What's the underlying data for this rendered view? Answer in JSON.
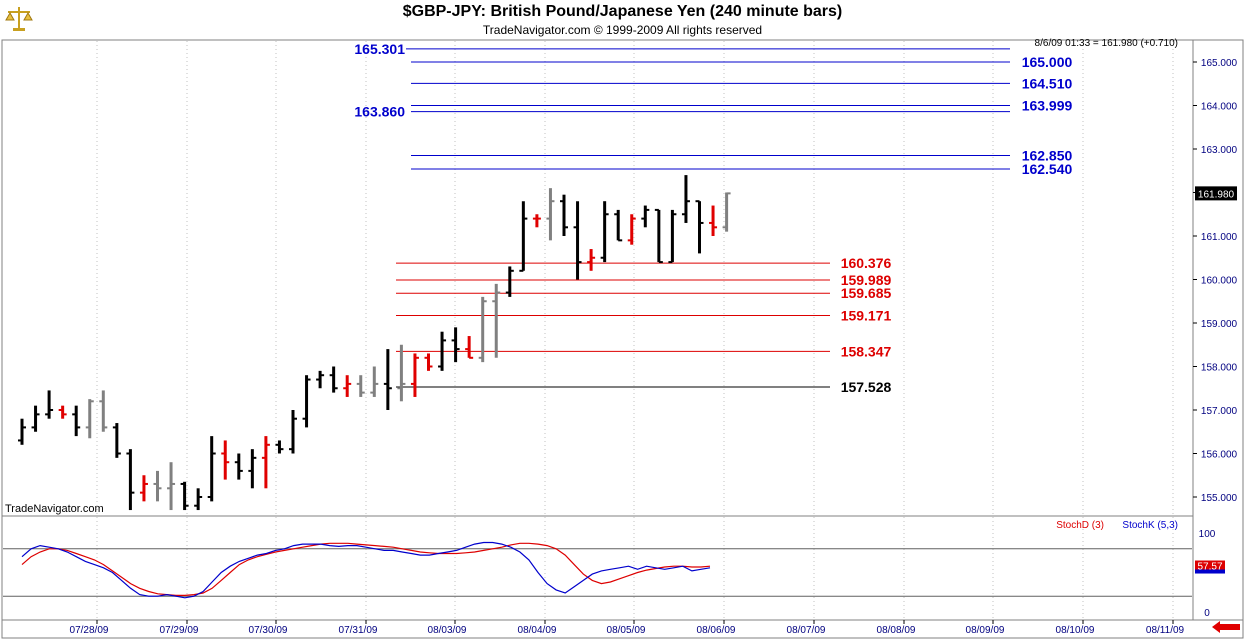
{
  "header": {
    "title": "$GBP-JPY:  British Pound/Japanese Yen  (240 minute bars)",
    "subtitle": "TradeNavigator.com © 1999-2009 All rights reserved",
    "watermark": "TradeNavigator.com",
    "logo_icon": "scales-icon"
  },
  "colors": {
    "up_bar": "#000000",
    "down_bar": "#e00000",
    "neutral_bar": "#808080",
    "resistance": "#0000cc",
    "support": "#dd0000",
    "base_line": "#000000",
    "stoch_d": "#dd0000",
    "stoch_k": "#0000cc",
    "axis_text": "#000080"
  },
  "chart_data": [
    {
      "type": "ohlc",
      "info_line": "8/6/09 01:33 = 161.980 (+0.710)",
      "last_price": "161.980",
      "ylim": [
        154.6,
        165.4
      ],
      "y_ticks": [
        "155.000",
        "156.000",
        "157.000",
        "158.000",
        "159.000",
        "160.000",
        "161.000",
        "162.000",
        "163.000",
        "164.000",
        "165.000"
      ],
      "x_ticks": [
        "07/28/09",
        "07/29/09",
        "07/30/09",
        "07/31/09",
        "08/03/09",
        "08/04/09",
        "08/05/09",
        "08/06/09",
        "08/07/09",
        "08/08/09",
        "08/09/09",
        "08/10/09",
        "08/11/09"
      ],
      "bars": [
        {
          "o": 156.3,
          "h": 156.8,
          "l": 156.2,
          "c": 156.6,
          "t": "up"
        },
        {
          "o": 156.6,
          "h": 157.1,
          "l": 156.5,
          "c": 156.9,
          "t": "up"
        },
        {
          "o": 156.9,
          "h": 157.45,
          "l": 156.8,
          "c": 157.0,
          "t": "up"
        },
        {
          "o": 157.0,
          "h": 157.1,
          "l": 156.8,
          "c": 156.9,
          "t": "down"
        },
        {
          "o": 156.9,
          "h": 157.1,
          "l": 156.4,
          "c": 156.6,
          "t": "up"
        },
        {
          "o": 156.6,
          "h": 157.25,
          "l": 156.35,
          "c": 157.2,
          "t": "neutral"
        },
        {
          "o": 157.2,
          "h": 157.45,
          "l": 156.5,
          "c": 156.6,
          "t": "neutral"
        },
        {
          "o": 156.6,
          "h": 156.7,
          "l": 155.9,
          "c": 156.0,
          "t": "up"
        },
        {
          "o": 156.0,
          "h": 156.1,
          "l": 154.7,
          "c": 155.1,
          "t": "up"
        },
        {
          "o": 155.1,
          "h": 155.5,
          "l": 154.9,
          "c": 155.3,
          "t": "down"
        },
        {
          "o": 155.3,
          "h": 155.6,
          "l": 154.9,
          "c": 155.2,
          "t": "neutral"
        },
        {
          "o": 155.2,
          "h": 155.8,
          "l": 154.7,
          "c": 155.3,
          "t": "neutral"
        },
        {
          "o": 155.3,
          "h": 155.35,
          "l": 154.7,
          "c": 154.8,
          "t": "up"
        },
        {
          "o": 154.8,
          "h": 155.2,
          "l": 154.7,
          "c": 155.0,
          "t": "up"
        },
        {
          "o": 155.0,
          "h": 156.4,
          "l": 154.9,
          "c": 156.0,
          "t": "up"
        },
        {
          "o": 156.0,
          "h": 156.3,
          "l": 155.4,
          "c": 155.8,
          "t": "down"
        },
        {
          "o": 155.8,
          "h": 156.0,
          "l": 155.4,
          "c": 155.6,
          "t": "up"
        },
        {
          "o": 155.6,
          "h": 156.1,
          "l": 155.2,
          "c": 155.9,
          "t": "up"
        },
        {
          "o": 155.9,
          "h": 156.4,
          "l": 155.2,
          "c": 156.2,
          "t": "down"
        },
        {
          "o": 156.2,
          "h": 156.3,
          "l": 156.0,
          "c": 156.1,
          "t": "up"
        },
        {
          "o": 156.1,
          "h": 157.0,
          "l": 156.0,
          "c": 156.8,
          "t": "up"
        },
        {
          "o": 156.8,
          "h": 157.8,
          "l": 156.6,
          "c": 157.7,
          "t": "up"
        },
        {
          "o": 157.7,
          "h": 157.9,
          "l": 157.5,
          "c": 157.8,
          "t": "up"
        },
        {
          "o": 157.8,
          "h": 158.0,
          "l": 157.4,
          "c": 157.5,
          "t": "up"
        },
        {
          "o": 157.5,
          "h": 157.8,
          "l": 157.3,
          "c": 157.6,
          "t": "down"
        },
        {
          "o": 157.6,
          "h": 157.8,
          "l": 157.3,
          "c": 157.4,
          "t": "neutral"
        },
        {
          "o": 157.4,
          "h": 158.0,
          "l": 157.3,
          "c": 157.6,
          "t": "neutral"
        },
        {
          "o": 157.6,
          "h": 158.4,
          "l": 157.0,
          "c": 157.5,
          "t": "up"
        },
        {
          "o": 157.5,
          "h": 158.5,
          "l": 157.2,
          "c": 157.6,
          "t": "neutral"
        },
        {
          "o": 157.6,
          "h": 158.3,
          "l": 157.3,
          "c": 158.2,
          "t": "down"
        },
        {
          "o": 158.2,
          "h": 158.3,
          "l": 157.9,
          "c": 158.0,
          "t": "down"
        },
        {
          "o": 158.0,
          "h": 158.8,
          "l": 157.9,
          "c": 158.6,
          "t": "up"
        },
        {
          "o": 158.6,
          "h": 158.9,
          "l": 158.1,
          "c": 158.4,
          "t": "up"
        },
        {
          "o": 158.4,
          "h": 158.7,
          "l": 158.2,
          "c": 158.2,
          "t": "down"
        },
        {
          "o": 158.2,
          "h": 159.6,
          "l": 158.1,
          "c": 159.5,
          "t": "neutral"
        },
        {
          "o": 159.5,
          "h": 159.9,
          "l": 158.2,
          "c": 159.7,
          "t": "neutral"
        },
        {
          "o": 159.7,
          "h": 160.3,
          "l": 159.6,
          "c": 160.2,
          "t": "up"
        },
        {
          "o": 160.2,
          "h": 161.8,
          "l": 160.2,
          "c": 161.4,
          "t": "up"
        },
        {
          "o": 161.4,
          "h": 161.5,
          "l": 161.2,
          "c": 161.4,
          "t": "down"
        },
        {
          "o": 161.4,
          "h": 162.1,
          "l": 160.9,
          "c": 161.8,
          "t": "neutral"
        },
        {
          "o": 161.8,
          "h": 161.95,
          "l": 161.0,
          "c": 161.2,
          "t": "up"
        },
        {
          "o": 161.2,
          "h": 161.8,
          "l": 160.0,
          "c": 160.4,
          "t": "up"
        },
        {
          "o": 160.4,
          "h": 160.7,
          "l": 160.2,
          "c": 160.5,
          "t": "down"
        },
        {
          "o": 160.5,
          "h": 161.8,
          "l": 160.4,
          "c": 161.5,
          "t": "up"
        },
        {
          "o": 161.5,
          "h": 161.6,
          "l": 160.9,
          "c": 160.9,
          "t": "up"
        },
        {
          "o": 160.9,
          "h": 161.5,
          "l": 160.8,
          "c": 161.4,
          "t": "down"
        },
        {
          "o": 161.4,
          "h": 161.7,
          "l": 161.2,
          "c": 161.6,
          "t": "up"
        },
        {
          "o": 161.6,
          "h": 161.6,
          "l": 160.4,
          "c": 160.4,
          "t": "up"
        },
        {
          "o": 160.4,
          "h": 161.6,
          "l": 160.4,
          "c": 161.5,
          "t": "up"
        },
        {
          "o": 161.5,
          "h": 162.4,
          "l": 161.3,
          "c": 161.8,
          "t": "up"
        },
        {
          "o": 161.8,
          "h": 161.8,
          "l": 160.6,
          "c": 161.3,
          "t": "up"
        },
        {
          "o": 161.3,
          "h": 161.7,
          "l": 161.0,
          "c": 161.2,
          "t": "down"
        },
        {
          "o": 161.2,
          "h": 162.0,
          "l": 161.1,
          "c": 161.98,
          "t": "neutral"
        }
      ],
      "levels": [
        {
          "value": 165.301,
          "label": "165.301",
          "kind": "resistance",
          "label_side": "left"
        },
        {
          "value": 165.0,
          "label": "165.000",
          "kind": "resistance",
          "label_side": "right"
        },
        {
          "value": 164.51,
          "label": "164.510",
          "kind": "resistance",
          "label_side": "right"
        },
        {
          "value": 163.999,
          "label": "163.999",
          "kind": "resistance",
          "label_side": "right"
        },
        {
          "value": 163.86,
          "label": "163.860",
          "kind": "resistance",
          "label_side": "left"
        },
        {
          "value": 162.85,
          "label": "162.850",
          "kind": "resistance",
          "label_side": "right"
        },
        {
          "value": 162.54,
          "label": "162.540",
          "kind": "resistance",
          "label_side": "right"
        },
        {
          "value": 160.376,
          "label": "160.376",
          "kind": "support",
          "label_side": "right"
        },
        {
          "value": 159.989,
          "label": "159.989",
          "kind": "support",
          "label_side": "right"
        },
        {
          "value": 159.685,
          "label": "159.685",
          "kind": "support",
          "label_side": "right"
        },
        {
          "value": 159.171,
          "label": "159.171",
          "kind": "support",
          "label_side": "right"
        },
        {
          "value": 158.347,
          "label": "158.347",
          "kind": "support",
          "label_side": "right"
        },
        {
          "value": 157.528,
          "label": "157.528",
          "kind": "base",
          "label_side": "right"
        }
      ]
    },
    {
      "type": "line",
      "ylim": [
        0,
        100
      ],
      "y_ticks": [
        "100",
        "0"
      ],
      "reference_lines": [
        80,
        20
      ],
      "last_value": "57.57",
      "series": [
        {
          "name": "StochD (3)",
          "values": [
            60,
            70,
            76,
            80,
            80,
            78,
            74,
            70,
            66,
            60,
            52,
            44,
            36,
            30,
            26,
            23,
            22,
            21,
            21,
            22,
            24,
            30,
            40,
            50,
            60,
            66,
            70,
            73,
            76,
            78,
            80,
            82,
            84,
            86,
            87,
            87,
            87,
            86,
            85,
            84,
            83,
            82,
            80,
            78,
            76,
            75,
            74,
            74,
            74,
            75,
            76,
            78,
            80,
            82,
            85,
            87,
            87,
            86,
            84,
            80,
            72,
            60,
            48,
            40,
            36,
            38,
            42,
            46,
            50,
            53,
            55,
            57,
            58,
            58,
            57,
            57,
            58
          ]
        },
        {
          "name": "StochK (5,3)",
          "values": [
            70,
            80,
            84,
            82,
            80,
            76,
            70,
            64,
            60,
            56,
            50,
            40,
            30,
            22,
            20,
            20,
            22,
            20,
            18,
            20,
            26,
            38,
            50,
            58,
            64,
            68,
            72,
            74,
            78,
            80,
            84,
            86,
            86,
            86,
            84,
            83,
            84,
            84,
            82,
            80,
            78,
            78,
            76,
            74,
            72,
            72,
            74,
            76,
            78,
            82,
            86,
            88,
            88,
            86,
            82,
            76,
            66,
            50,
            36,
            28,
            24,
            32,
            40,
            48,
            52,
            54,
            56,
            58,
            54,
            58,
            56,
            54,
            56,
            58,
            52,
            54,
            56
          ]
        }
      ]
    }
  ]
}
